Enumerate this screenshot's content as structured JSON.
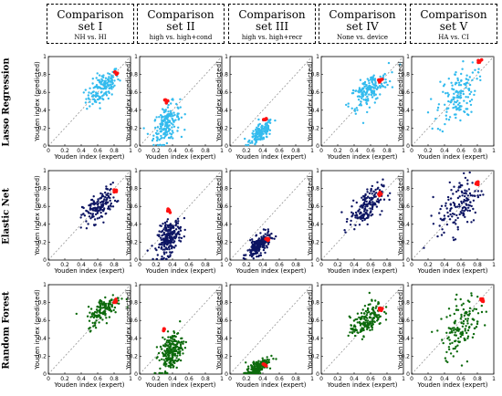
{
  "columns": [
    {
      "title": "Comparison",
      "set": "set I",
      "subtitle": "NH vs. HI"
    },
    {
      "title": "Comparison",
      "set": "set II",
      "subtitle": "high vs. high+cond"
    },
    {
      "title": "Comparison",
      "set": "set III",
      "subtitle": "high vs. high+recr"
    },
    {
      "title": "Comparison",
      "set": "set IV",
      "subtitle": "None vs. device"
    },
    {
      "title": "Comparison",
      "set": "set V",
      "subtitle": "HA vs. CI"
    }
  ],
  "rows": [
    {
      "label": "Lasso Regression",
      "color": "#33bbee"
    },
    {
      "label": "Elastic Net",
      "color": "#0d1563"
    },
    {
      "label": "Random Forest",
      "color": "#0c6a0c"
    }
  ],
  "highlight_color": "#ff1111",
  "chart_data": {
    "type": "scatter",
    "xlabel": "Youden index (expert)",
    "ylabel": "Youden index (predicted)",
    "xlim": [
      0,
      1
    ],
    "ylim": [
      0,
      1
    ],
    "x_ticks": [
      "0",
      "0.2",
      "0.4",
      "0.6",
      "0.8",
      "1"
    ],
    "y_ticks": [
      "0",
      "0.2",
      "0.4",
      "0.6",
      "0.8",
      "1"
    ],
    "diagonal": "y = x (dashed)",
    "clusters": [
      [
        {
          "cx": 0.66,
          "cy": 0.65,
          "sx": 0.1,
          "sy": 0.08,
          "n": 150,
          "red": [
            0.82,
            0.82
          ]
        },
        {
          "cx": 0.33,
          "cy": 0.25,
          "sx": 0.08,
          "sy": 0.1,
          "n": 180,
          "red": [
            0.32,
            0.5
          ]
        },
        {
          "cx": 0.38,
          "cy": 0.15,
          "sx": 0.07,
          "sy": 0.05,
          "n": 160,
          "red": [
            0.43,
            0.3
          ]
        },
        {
          "cx": 0.58,
          "cy": 0.62,
          "sx": 0.12,
          "sy": 0.08,
          "n": 170,
          "red": [
            0.72,
            0.73
          ]
        },
        {
          "cx": 0.55,
          "cy": 0.55,
          "sx": 0.12,
          "sy": 0.15,
          "n": 140,
          "red": [
            0.83,
            0.95
          ]
        }
      ],
      [
        {
          "cx": 0.62,
          "cy": 0.6,
          "sx": 0.1,
          "sy": 0.08,
          "n": 150,
          "red": [
            0.82,
            0.77
          ]
        },
        {
          "cx": 0.36,
          "cy": 0.25,
          "sx": 0.07,
          "sy": 0.09,
          "n": 230,
          "red": [
            0.35,
            0.55
          ]
        },
        {
          "cx": 0.35,
          "cy": 0.16,
          "sx": 0.07,
          "sy": 0.05,
          "n": 200,
          "red": [
            0.45,
            0.23
          ]
        },
        {
          "cx": 0.55,
          "cy": 0.6,
          "sx": 0.1,
          "sy": 0.09,
          "n": 170,
          "red": [
            0.72,
            0.74
          ]
        },
        {
          "cx": 0.58,
          "cy": 0.62,
          "sx": 0.13,
          "sy": 0.15,
          "n": 140,
          "red": [
            0.8,
            0.86
          ]
        }
      ],
      [
        {
          "cx": 0.68,
          "cy": 0.73,
          "sx": 0.1,
          "sy": 0.07,
          "n": 140,
          "red": [
            0.82,
            0.82
          ]
        },
        {
          "cx": 0.38,
          "cy": 0.25,
          "sx": 0.07,
          "sy": 0.1,
          "n": 220,
          "red": [
            0.3,
            0.5
          ]
        },
        {
          "cx": 0.33,
          "cy": 0.07,
          "sx": 0.07,
          "sy": 0.04,
          "n": 170,
          "red": [
            0.42,
            0.1
          ]
        },
        {
          "cx": 0.55,
          "cy": 0.6,
          "sx": 0.1,
          "sy": 0.08,
          "n": 170,
          "red": [
            0.72,
            0.72
          ]
        },
        {
          "cx": 0.6,
          "cy": 0.55,
          "sx": 0.12,
          "sy": 0.15,
          "n": 140,
          "red": [
            0.85,
            0.83
          ]
        }
      ]
    ]
  }
}
